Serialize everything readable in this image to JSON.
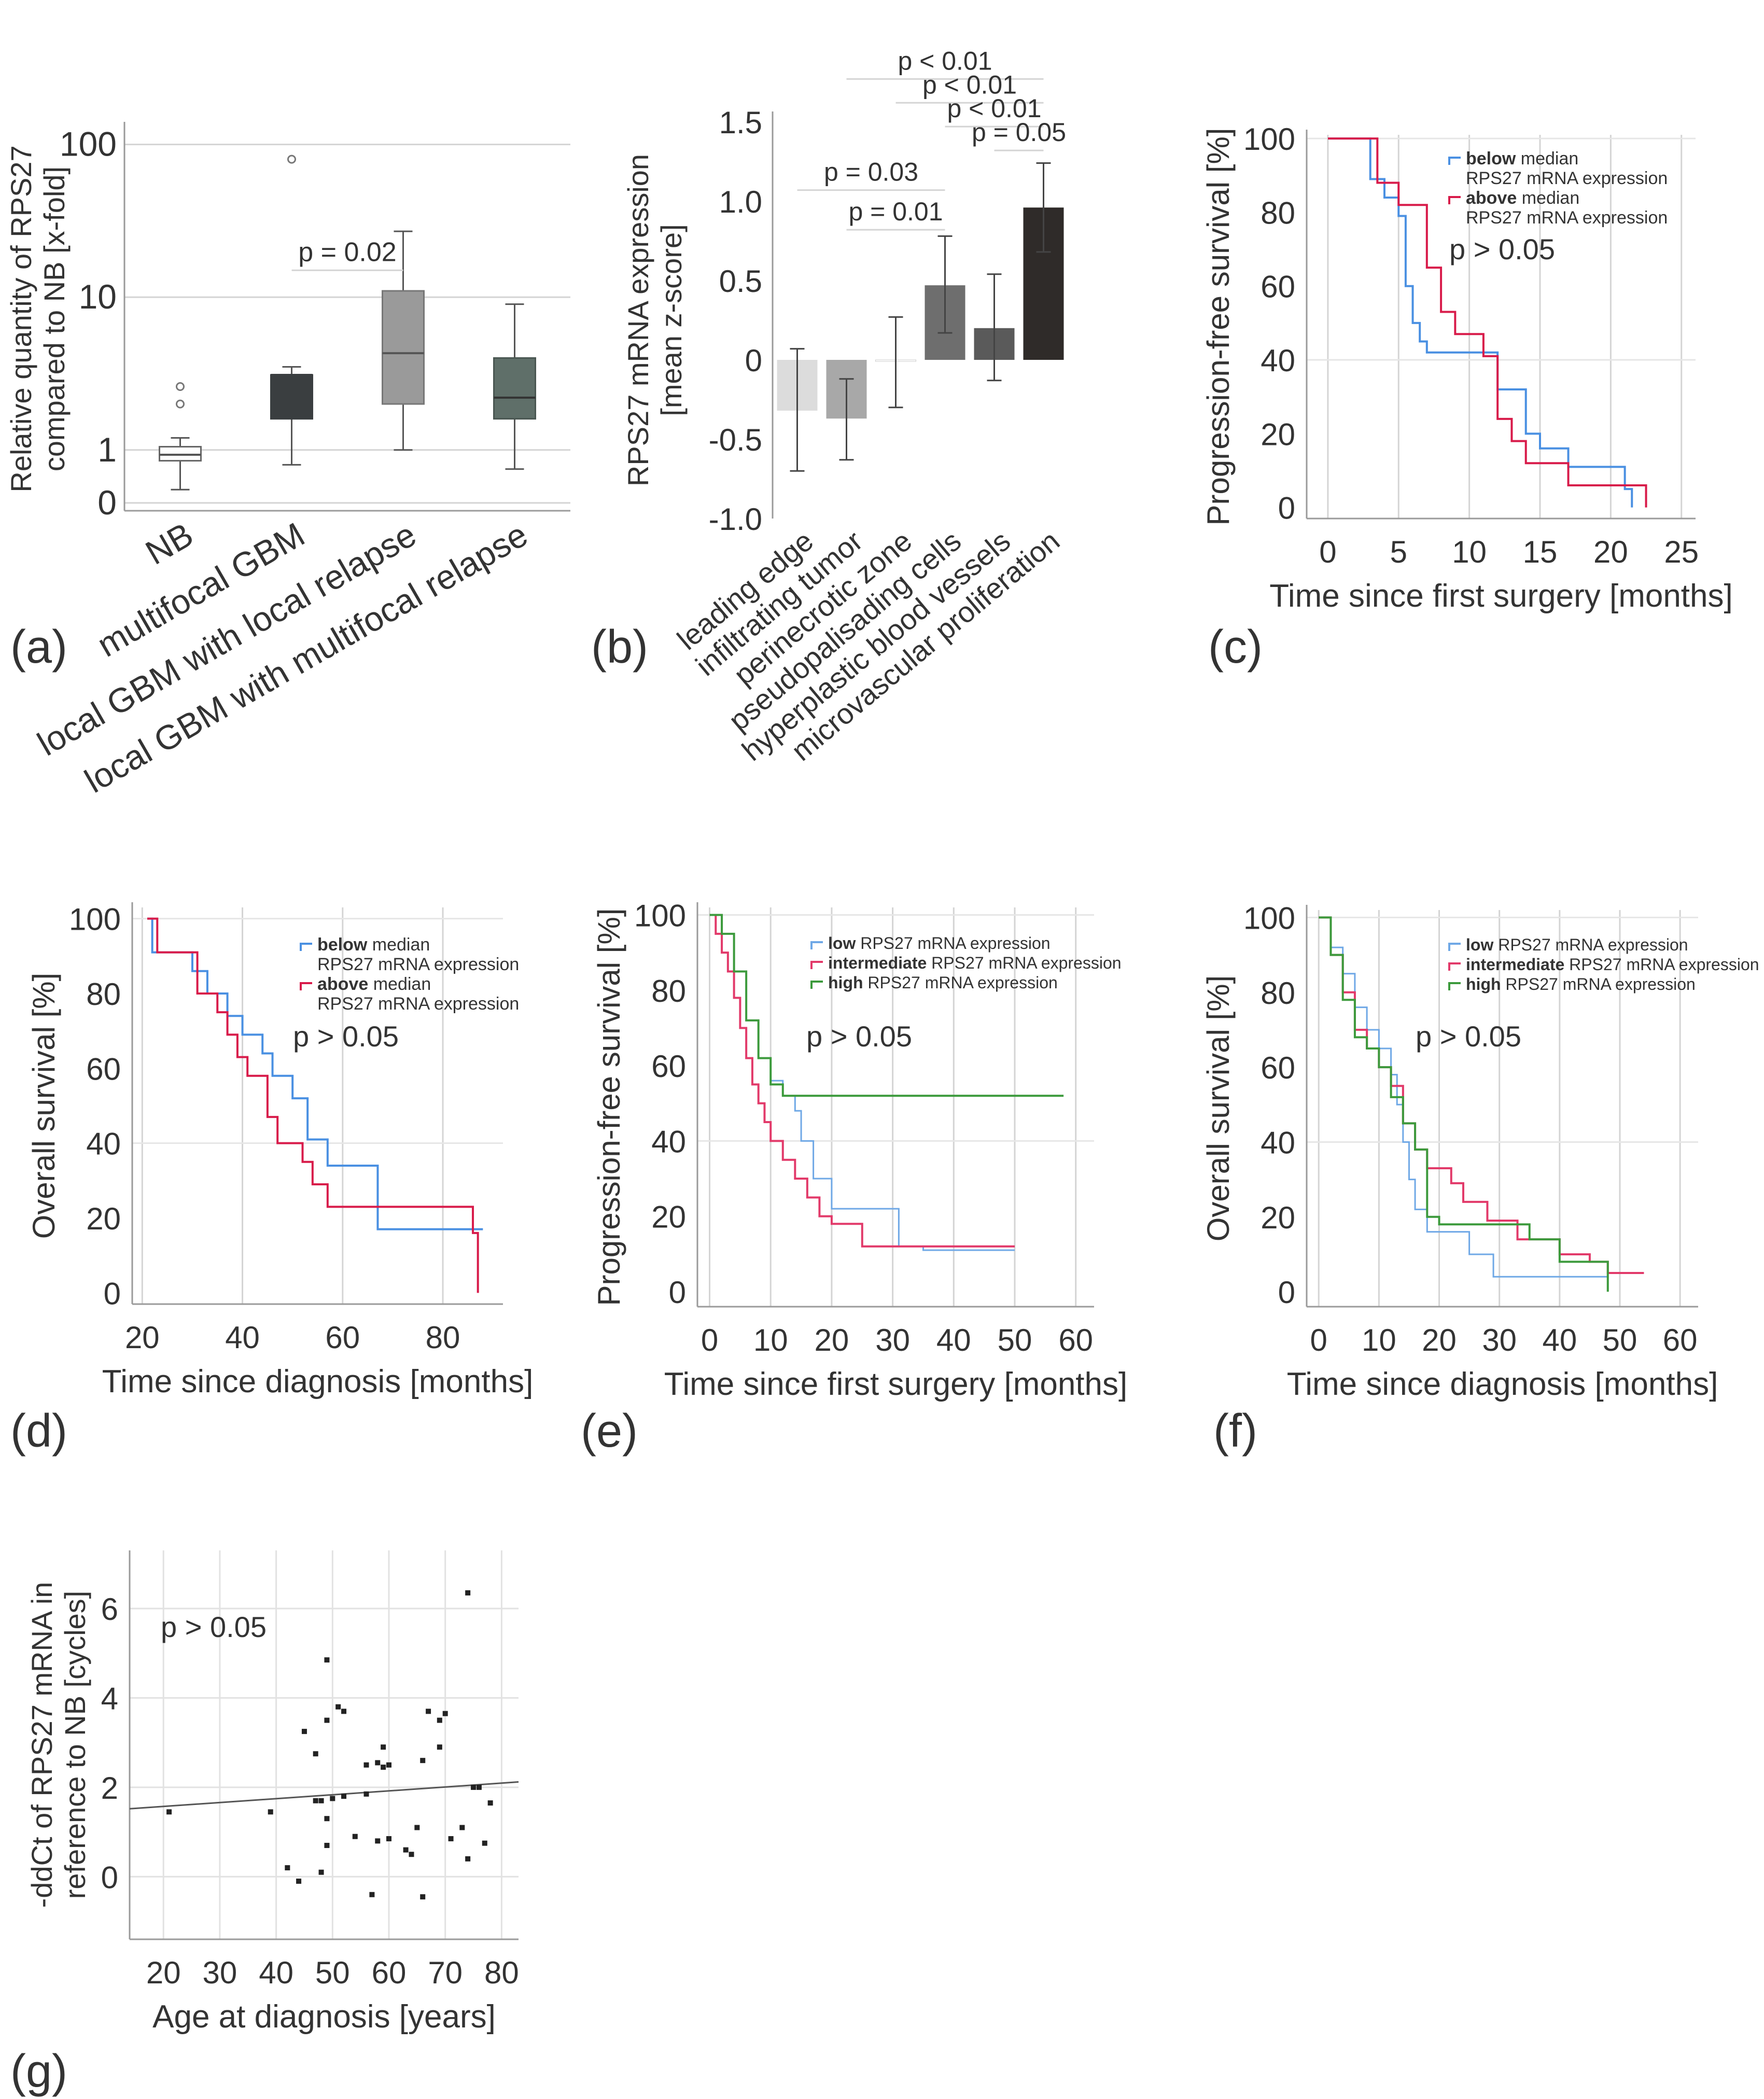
{
  "panel_letters": {
    "a": "(a)",
    "b": "(b)",
    "c": "(c)",
    "d": "(d)",
    "e": "(e)",
    "f": "(f)",
    "g": "(g)"
  },
  "colors": {
    "below": "#4a90e2",
    "above": "#d81b4a",
    "low": "#6fa8e6",
    "intermediate": "#e23a6a",
    "high": "#3c9a3c",
    "grid": "#d4d4d4",
    "axis": "#9a9a9a",
    "text": "#333333"
  },
  "chart_data": [
    {
      "id": "a",
      "type": "box",
      "scale": "log",
      "ylabel_lines": [
        "Relative quantity of RPS27",
        "compared to NB [x-fold]"
      ],
      "categories": [
        "NB",
        "multifocal GBM",
        "local GBM with local relapse",
        "local GBM with multifocal relapse"
      ],
      "yticks": [
        {
          "v": 100,
          "l": "100"
        },
        {
          "v": 10,
          "l": "10"
        },
        {
          "v": 1,
          "l": "1"
        },
        {
          "v": 0.45,
          "l": "0"
        }
      ],
      "boxes": [
        {
          "min": 0.55,
          "q1": 0.85,
          "median": 0.93,
          "q3": 1.05,
          "max": 1.2,
          "color": "#ffffff",
          "stroke": "#666666",
          "median_color": "#555555",
          "outliers": [
            2.0,
            2.6
          ]
        },
        {
          "min": 0.8,
          "q1": 1.6,
          "median": 3.1,
          "q3": 3.1,
          "max": 3.5,
          "color": "#3a3e40",
          "stroke": "#3a3e40",
          "median_color": "#3a3e40",
          "outliers": [
            80
          ]
        },
        {
          "min": 1.0,
          "q1": 2.0,
          "median": 4.3,
          "q3": 11,
          "max": 27,
          "color": "#9a9a9a",
          "stroke": "#777777",
          "median_color": "#555555",
          "outliers": []
        },
        {
          "min": 0.75,
          "q1": 1.6,
          "median": 2.2,
          "q3": 4.0,
          "max": 9,
          "color": "#5f6f69",
          "stroke": "#4a5752",
          "median_color": "#333333",
          "outliers": []
        }
      ],
      "annotations": [
        {
          "from": 1,
          "to": 2,
          "y": 15,
          "label": "p = 0.02"
        }
      ]
    },
    {
      "id": "b",
      "type": "bar",
      "ylabel_lines": [
        "RPS27 mRNA expression",
        "[mean z-score]"
      ],
      "ylim": [
        -1.0,
        1.5
      ],
      "yticks": [
        {
          "v": 1.5,
          "l": "1.5"
        },
        {
          "v": 1.0,
          "l": "1.0"
        },
        {
          "v": 0.5,
          "l": "0.5"
        },
        {
          "v": 0,
          "l": "0"
        },
        {
          "v": -0.5,
          "l": "-0.5"
        },
        {
          "v": -1.0,
          "l": "-1.0"
        }
      ],
      "categories": [
        "leading edge",
        "infiltrating tumor",
        "perinecrotic zone",
        "pseudopalisading cells",
        "hyperplastic blood vessels",
        "microvascular proliferation"
      ],
      "values": [
        -0.32,
        -0.37,
        0.0,
        0.47,
        0.2,
        0.96
      ],
      "err_low": [
        -0.7,
        -0.63,
        -0.3,
        0.17,
        -0.13,
        0.68
      ],
      "err_high": [
        0.07,
        -0.12,
        0.27,
        0.78,
        0.54,
        1.24
      ],
      "colors": [
        "#dcdcdc",
        "#a8a8a8",
        "#ffffff",
        "#6e6e6e",
        "#5a5a5a",
        "#2f2b29"
      ],
      "annotations": [
        {
          "from": 1,
          "to": 5,
          "label": "p < 0.01",
          "y": 1.77
        },
        {
          "from": 2,
          "to": 5,
          "label": "p < 0.01",
          "y": 1.62
        },
        {
          "from": 3,
          "to": 5,
          "label": "p < 0.01",
          "y": 1.47
        },
        {
          "from": 0,
          "to": 3,
          "label": "p = 0.03",
          "y": 1.07
        },
        {
          "from": 4,
          "to": 5,
          "label": "p = 0.05",
          "y": 1.32
        },
        {
          "from": 1,
          "to": 3,
          "label": "p = 0.01",
          "y": 0.82
        }
      ]
    },
    {
      "id": "c",
      "type": "line",
      "xlabel": "Time since first surgery [months]",
      "ylabel": "Progression-free survival [%]",
      "xlim": [
        -1.5,
        26
      ],
      "ylim": [
        -3,
        101
      ],
      "xticks": [
        0,
        5,
        10,
        15,
        20,
        25
      ],
      "yticks": [
        0,
        20,
        40,
        60,
        80,
        100
      ],
      "p_label": "p > 0.05",
      "legend": [
        {
          "key": "below",
          "bold": "below",
          "rest": " median",
          "line2": "RPS27 mRNA expression"
        },
        {
          "key": "above",
          "bold": "above",
          "rest": " median",
          "line2": "RPS27 mRNA expression"
        }
      ],
      "series": [
        {
          "key": "below",
          "x": [
            0,
            3,
            4,
            5,
            5.5,
            6,
            6.5,
            7,
            8,
            12,
            14,
            15,
            17,
            21,
            21.5
          ],
          "y": [
            100,
            89,
            84,
            79,
            60,
            50,
            45,
            42,
            42,
            32,
            20,
            16,
            11,
            5,
            0
          ]
        },
        {
          "key": "above",
          "x": [
            0,
            3.5,
            5,
            7,
            8,
            9,
            11,
            12,
            13,
            14,
            17,
            22,
            22.5
          ],
          "y": [
            100,
            88,
            82,
            65,
            53,
            47,
            41,
            24,
            18,
            12,
            6,
            6,
            0
          ]
        }
      ]
    },
    {
      "id": "d",
      "type": "line",
      "xlabel": "Time since diagnosis [months]",
      "ylabel": "Overall survival [%]",
      "xlim": [
        18,
        92
      ],
      "ylim": [
        -3,
        103
      ],
      "xticks": [
        20,
        40,
        60,
        80
      ],
      "yticks": [
        0,
        20,
        40,
        60,
        80,
        100
      ],
      "p_label": "p > 0.05",
      "legend": [
        {
          "key": "below",
          "bold": "below",
          "rest": " median",
          "line2": "RPS27 mRNA expression"
        },
        {
          "key": "above",
          "bold": "above",
          "rest": " median",
          "line2": "RPS27 mRNA expression"
        }
      ],
      "series": [
        {
          "key": "below",
          "x": [
            21,
            22,
            30,
            33,
            37,
            40,
            44,
            46,
            50,
            53,
            57,
            60,
            67,
            83,
            88
          ],
          "y": [
            100,
            91,
            86,
            80,
            74,
            69,
            64,
            58,
            52,
            41,
            34,
            34,
            17,
            17,
            17
          ]
        },
        {
          "key": "above",
          "x": [
            21,
            23,
            31,
            35,
            37,
            39,
            41,
            45,
            47,
            52,
            54,
            57,
            83,
            86,
            87
          ],
          "y": [
            100,
            91,
            80,
            75,
            69,
            63,
            58,
            47,
            40,
            35,
            29,
            23,
            23,
            16,
            0
          ]
        }
      ]
    },
    {
      "id": "e",
      "type": "line",
      "xlabel": "Time since first surgery [months]",
      "ylabel": "Progression-free survival [%]",
      "xlim": [
        -2,
        63
      ],
      "ylim": [
        -4,
        102
      ],
      "xticks": [
        0,
        10,
        20,
        30,
        40,
        50,
        60
      ],
      "yticks": [
        0,
        20,
        40,
        60,
        80,
        100
      ],
      "p_label": "p > 0.05",
      "legend": [
        {
          "key": "low",
          "bold": "low",
          "rest": " RPS27 mRNA expression",
          "line2": ""
        },
        {
          "key": "intermediate",
          "bold": "intermediate",
          "rest": " RPS27 mRNA expression",
          "line2": ""
        },
        {
          "key": "high",
          "bold": "high",
          "rest": " RPS27 mRNA expression",
          "line2": ""
        }
      ],
      "series": [
        {
          "key": "low",
          "x": [
            0,
            2,
            4,
            6,
            8,
            10,
            12,
            14,
            15,
            17,
            20,
            25,
            31,
            35,
            50
          ],
          "y": [
            100,
            95,
            85,
            72,
            62,
            56,
            52,
            48,
            40,
            30,
            22,
            22,
            12,
            11,
            11
          ]
        },
        {
          "key": "intermediate",
          "x": [
            0,
            1,
            2,
            3,
            4,
            5,
            6,
            7,
            8,
            9,
            10,
            12,
            14,
            16,
            18,
            20,
            25,
            35,
            50
          ],
          "y": [
            100,
            95,
            90,
            85,
            78,
            70,
            62,
            55,
            50,
            45,
            40,
            35,
            30,
            25,
            20,
            18,
            12,
            12,
            12
          ]
        },
        {
          "key": "high",
          "x": [
            0,
            2,
            4,
            6,
            8,
            10,
            12,
            58
          ],
          "y": [
            100,
            95,
            85,
            72,
            62,
            55,
            52,
            52
          ]
        }
      ]
    },
    {
      "id": "f",
      "type": "line",
      "xlabel": "Time since diagnosis [months]",
      "ylabel": "Overall survival [%]",
      "xlim": [
        -2,
        63
      ],
      "ylim": [
        -4,
        102
      ],
      "xticks": [
        0,
        10,
        20,
        30,
        40,
        50,
        60
      ],
      "yticks": [
        0,
        20,
        40,
        60,
        80,
        100
      ],
      "p_label": "p > 0.05",
      "legend": [
        {
          "key": "low",
          "bold": "low",
          "rest": " RPS27 mRNA expression",
          "line2": ""
        },
        {
          "key": "intermediate",
          "bold": "intermediate",
          "rest": " RPS27 mRNA expression",
          "line2": ""
        },
        {
          "key": "high",
          "bold": "high",
          "rest": " RPS27 mRNA expression",
          "line2": ""
        }
      ],
      "series": [
        {
          "key": "low",
          "x": [
            0,
            2,
            4,
            6,
            8,
            10,
            12,
            13,
            14,
            15,
            16,
            18,
            22,
            25,
            29,
            48
          ],
          "y": [
            100,
            92,
            85,
            76,
            70,
            65,
            58,
            50,
            40,
            30,
            22,
            16,
            16,
            10,
            4,
            4
          ]
        },
        {
          "key": "intermediate",
          "x": [
            0,
            2,
            4,
            6,
            8,
            10,
            12,
            14,
            16,
            18,
            20,
            22,
            24,
            28,
            33,
            40,
            45,
            48,
            54
          ],
          "y": [
            100,
            90,
            80,
            70,
            65,
            60,
            55,
            45,
            38,
            33,
            33,
            29,
            24,
            19,
            14,
            10,
            8,
            5,
            5
          ]
        },
        {
          "key": "high",
          "x": [
            0,
            2,
            4,
            6,
            8,
            10,
            12,
            14,
            16,
            18,
            20,
            25,
            30,
            35,
            40,
            48
          ],
          "y": [
            100,
            90,
            78,
            68,
            65,
            60,
            52,
            45,
            38,
            20,
            18,
            18,
            18,
            14,
            8,
            0
          ]
        }
      ]
    },
    {
      "id": "g",
      "type": "scatter",
      "xlabel": "Age at diagnosis [years]",
      "ylabel_lines": [
        "-ddCt of RPS27 mRNA in",
        "reference to NB [cycles]"
      ],
      "xlim": [
        14,
        83
      ],
      "ylim": [
        -1.4,
        7.3
      ],
      "xticks": [
        20,
        30,
        40,
        50,
        60,
        70,
        80
      ],
      "yticks": [
        0,
        2,
        4,
        6
      ],
      "p_label": "p > 0.05",
      "trend": {
        "x": [
          14,
          83
        ],
        "y": [
          1.52,
          2.12
        ]
      },
      "x": [
        21,
        39,
        42,
        44,
        45,
        47,
        47,
        48,
        48,
        49,
        49,
        49,
        49,
        50,
        51,
        52,
        52,
        54,
        56,
        56,
        57,
        58,
        58,
        59,
        59,
        60,
        60,
        63,
        64,
        65,
        66,
        66,
        67,
        69,
        69,
        70,
        71,
        73,
        74,
        74,
        75,
        76,
        77,
        78
      ],
      "y": [
        1.45,
        1.45,
        0.2,
        -0.1,
        3.25,
        1.7,
        2.75,
        0.1,
        1.7,
        3.5,
        4.85,
        1.3,
        0.7,
        1.75,
        3.8,
        1.8,
        3.7,
        0.9,
        2.5,
        1.85,
        -0.4,
        0.8,
        2.55,
        2.45,
        2.9,
        2.5,
        0.85,
        0.6,
        0.5,
        1.1,
        2.6,
        -0.45,
        3.7,
        2.9,
        3.5,
        3.65,
        0.85,
        1.1,
        0.4,
        6.35,
        2.0,
        2.0,
        0.75,
        1.65
      ]
    }
  ]
}
